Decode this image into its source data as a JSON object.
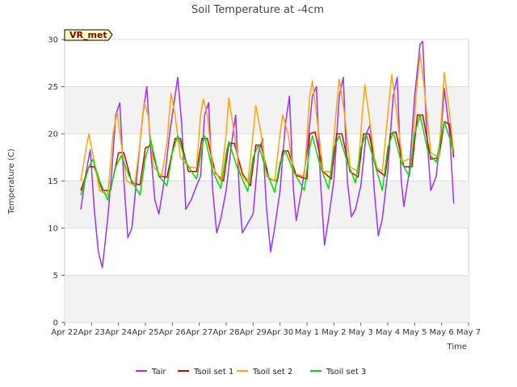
{
  "chart_data": {
    "type": "line",
    "title": "Soil Temperature at -4cm",
    "xlabel": "Time",
    "ylabel": "Temperature (C)",
    "ylim": [
      0,
      30
    ],
    "yticks": [
      "0",
      "5",
      "10",
      "15",
      "20",
      "25",
      "30"
    ],
    "xlim": [
      0,
      15
    ],
    "xtick_labels": [
      "Apr 22",
      "Apr 23",
      "Apr 24",
      "Apr 25",
      "Apr 26",
      "Apr 27",
      "Apr 28",
      "Apr 29",
      "Apr 30",
      "May 1",
      "May 2",
      "May 3",
      "May 4",
      "May 5",
      "May 6",
      "May 7"
    ],
    "grid": "horizontal bands",
    "legend_position": "bottom",
    "site_label": "VR_met",
    "series": [
      {
        "name": "Tair",
        "color": "#9b30ff",
        "points": [
          [
            0.6,
            12
          ],
          [
            0.8,
            16
          ],
          [
            0.95,
            18.3
          ],
          [
            1.1,
            12
          ],
          [
            1.25,
            7.5
          ],
          [
            1.4,
            5.8
          ],
          [
            1.6,
            11
          ],
          [
            1.75,
            16
          ],
          [
            1.9,
            22
          ],
          [
            2.05,
            23.3
          ],
          [
            2.2,
            15
          ],
          [
            2.35,
            9
          ],
          [
            2.5,
            10
          ],
          [
            2.7,
            16
          ],
          [
            2.9,
            22
          ],
          [
            3.05,
            25
          ],
          [
            3.2,
            18
          ],
          [
            3.35,
            13
          ],
          [
            3.5,
            11.5
          ],
          [
            3.7,
            15
          ],
          [
            3.9,
            20
          ],
          [
            4.05,
            23
          ],
          [
            4.2,
            26
          ],
          [
            4.35,
            21
          ],
          [
            4.5,
            12
          ],
          [
            4.7,
            13
          ],
          [
            4.9,
            14.5
          ],
          [
            5.05,
            15.5
          ],
          [
            5.2,
            22
          ],
          [
            5.35,
            23.3
          ],
          [
            5.5,
            14
          ],
          [
            5.65,
            9.5
          ],
          [
            5.8,
            11
          ],
          [
            6.0,
            14
          ],
          [
            6.2,
            19
          ],
          [
            6.35,
            22
          ],
          [
            6.5,
            13
          ],
          [
            6.6,
            9.5
          ],
          [
            6.8,
            10.5
          ],
          [
            7.0,
            11.5
          ],
          [
            7.2,
            18
          ],
          [
            7.35,
            19.5
          ],
          [
            7.5,
            12
          ],
          [
            7.65,
            7.5
          ],
          [
            7.8,
            10
          ],
          [
            8.0,
            14
          ],
          [
            8.2,
            21
          ],
          [
            8.35,
            24
          ],
          [
            8.5,
            14
          ],
          [
            8.6,
            10.8
          ],
          [
            8.8,
            14
          ],
          [
            9.0,
            18
          ],
          [
            9.2,
            24
          ],
          [
            9.35,
            25
          ],
          [
            9.5,
            15
          ],
          [
            9.65,
            8.2
          ],
          [
            9.8,
            11
          ],
          [
            10.0,
            15
          ],
          [
            10.2,
            24
          ],
          [
            10.35,
            26
          ],
          [
            10.5,
            15
          ],
          [
            10.65,
            11.2
          ],
          [
            10.8,
            12
          ],
          [
            11.0,
            14.5
          ],
          [
            11.2,
            20
          ],
          [
            11.35,
            21
          ],
          [
            11.5,
            14
          ],
          [
            11.65,
            9.2
          ],
          [
            11.8,
            11
          ],
          [
            12.0,
            16
          ],
          [
            12.2,
            24
          ],
          [
            12.35,
            26
          ],
          [
            12.5,
            15
          ],
          [
            12.6,
            12.3
          ],
          [
            12.8,
            16
          ],
          [
            13.0,
            24
          ],
          [
            13.2,
            29.5
          ],
          [
            13.3,
            29.8
          ],
          [
            13.45,
            20
          ],
          [
            13.6,
            14
          ],
          [
            13.8,
            15.5
          ],
          [
            14.0,
            21
          ],
          [
            14.1,
            24.8
          ],
          [
            14.3,
            20
          ],
          [
            14.45,
            12.6
          ]
        ]
      },
      {
        "name": "Tsoil set 1",
        "color": "#dd0000",
        "points": [
          [
            0.6,
            14
          ],
          [
            0.9,
            16.5
          ],
          [
            1.1,
            16.5
          ],
          [
            1.4,
            14
          ],
          [
            1.7,
            14
          ],
          [
            2.0,
            18
          ],
          [
            2.2,
            18
          ],
          [
            2.5,
            14.8
          ],
          [
            2.8,
            14.6
          ],
          [
            3.0,
            18.5
          ],
          [
            3.2,
            18.8
          ],
          [
            3.5,
            15.5
          ],
          [
            3.8,
            15.4
          ],
          [
            4.1,
            19.5
          ],
          [
            4.3,
            19.5
          ],
          [
            4.6,
            16
          ],
          [
            4.9,
            16
          ],
          [
            5.1,
            19.5
          ],
          [
            5.3,
            19.5
          ],
          [
            5.6,
            15.8
          ],
          [
            5.9,
            15
          ],
          [
            6.1,
            19
          ],
          [
            6.3,
            19
          ],
          [
            6.6,
            15.8
          ],
          [
            6.9,
            14.5
          ],
          [
            7.1,
            18.8
          ],
          [
            7.3,
            18.8
          ],
          [
            7.6,
            15.2
          ],
          [
            7.9,
            15
          ],
          [
            8.1,
            18.2
          ],
          [
            8.3,
            18.2
          ],
          [
            8.6,
            15.6
          ],
          [
            9.0,
            15.2
          ],
          [
            9.1,
            20
          ],
          [
            9.3,
            20.2
          ],
          [
            9.6,
            16
          ],
          [
            9.9,
            15.2
          ],
          [
            10.1,
            20
          ],
          [
            10.3,
            20
          ],
          [
            10.6,
            16
          ],
          [
            10.9,
            15.4
          ],
          [
            11.1,
            20
          ],
          [
            11.3,
            20
          ],
          [
            11.6,
            16.2
          ],
          [
            11.9,
            15.5
          ],
          [
            12.1,
            20
          ],
          [
            12.3,
            20.2
          ],
          [
            12.6,
            16.5
          ],
          [
            12.9,
            16.5
          ],
          [
            13.1,
            22
          ],
          [
            13.3,
            22
          ],
          [
            13.6,
            17.3
          ],
          [
            13.9,
            17.5
          ],
          [
            14.1,
            21.3
          ],
          [
            14.3,
            21
          ],
          [
            14.45,
            17.5
          ]
        ]
      },
      {
        "name": "Tsoil set 2",
        "color": "#ffa500",
        "points": [
          [
            0.6,
            15
          ],
          [
            0.8,
            18.5
          ],
          [
            0.9,
            20
          ],
          [
            1.1,
            17
          ],
          [
            1.3,
            14
          ],
          [
            1.6,
            13.5
          ],
          [
            1.8,
            20
          ],
          [
            1.95,
            22.3
          ],
          [
            2.1,
            19
          ],
          [
            2.3,
            15
          ],
          [
            2.6,
            14.5
          ],
          [
            2.8,
            19
          ],
          [
            2.95,
            23.3
          ],
          [
            3.1,
            22
          ],
          [
            3.3,
            16.5
          ],
          [
            3.6,
            15.5
          ],
          [
            3.8,
            19
          ],
          [
            3.95,
            24.3
          ],
          [
            4.1,
            22
          ],
          [
            4.3,
            17.5
          ],
          [
            4.6,
            16.5
          ],
          [
            4.9,
            16.4
          ],
          [
            5.05,
            22
          ],
          [
            5.15,
            23.7
          ],
          [
            5.3,
            22
          ],
          [
            5.5,
            16.5
          ],
          [
            5.8,
            15
          ],
          [
            6.0,
            20
          ],
          [
            6.1,
            23.8
          ],
          [
            6.3,
            20
          ],
          [
            6.5,
            16
          ],
          [
            6.8,
            14.8
          ],
          [
            7.0,
            20
          ],
          [
            7.1,
            23
          ],
          [
            7.3,
            20
          ],
          [
            7.5,
            15.5
          ],
          [
            7.8,
            15
          ],
          [
            8.0,
            20
          ],
          [
            8.1,
            22
          ],
          [
            8.3,
            20
          ],
          [
            8.5,
            15.8
          ],
          [
            8.9,
            15.5
          ],
          [
            9.1,
            24
          ],
          [
            9.2,
            25.6
          ],
          [
            9.4,
            21
          ],
          [
            9.6,
            16
          ],
          [
            9.9,
            16
          ],
          [
            10.1,
            23
          ],
          [
            10.2,
            25.8
          ],
          [
            10.4,
            22
          ],
          [
            10.6,
            16.5
          ],
          [
            10.9,
            16
          ],
          [
            11.05,
            22
          ],
          [
            11.15,
            25.2
          ],
          [
            11.3,
            22
          ],
          [
            11.55,
            16.5
          ],
          [
            11.8,
            16
          ],
          [
            12.0,
            22
          ],
          [
            12.15,
            26.3
          ],
          [
            12.3,
            23
          ],
          [
            12.55,
            17
          ],
          [
            12.9,
            17.5
          ],
          [
            13.05,
            24
          ],
          [
            13.2,
            28.5
          ],
          [
            13.35,
            25
          ],
          [
            13.6,
            18
          ],
          [
            13.9,
            17.5
          ],
          [
            14.0,
            22
          ],
          [
            14.1,
            26.5
          ],
          [
            14.3,
            22
          ],
          [
            14.45,
            18
          ]
        ]
      },
      {
        "name": "Tsoil set 3",
        "color": "#00e000",
        "points": [
          [
            0.6,
            13.5
          ],
          [
            0.9,
            16.5
          ],
          [
            1.05,
            17.3
          ],
          [
            1.3,
            15
          ],
          [
            1.6,
            13
          ],
          [
            1.9,
            16.5
          ],
          [
            2.1,
            17.7
          ],
          [
            2.4,
            15.5
          ],
          [
            2.8,
            13.5
          ],
          [
            3.0,
            17.5
          ],
          [
            3.2,
            19.3
          ],
          [
            3.5,
            15.5
          ],
          [
            3.8,
            14.5
          ],
          [
            4.0,
            18
          ],
          [
            4.2,
            19.8
          ],
          [
            4.5,
            17
          ],
          [
            4.9,
            15.2
          ],
          [
            5.1,
            18.5
          ],
          [
            5.2,
            19.8
          ],
          [
            5.5,
            16
          ],
          [
            5.8,
            14.2
          ],
          [
            6.0,
            18
          ],
          [
            6.1,
            19.2
          ],
          [
            6.4,
            16.5
          ],
          [
            6.8,
            13.9
          ],
          [
            7.0,
            17.5
          ],
          [
            7.2,
            18.8
          ],
          [
            7.5,
            16
          ],
          [
            7.8,
            13.8
          ],
          [
            8.0,
            17
          ],
          [
            8.2,
            18.2
          ],
          [
            8.5,
            16
          ],
          [
            8.9,
            14
          ],
          [
            9.1,
            18.5
          ],
          [
            9.2,
            19.8
          ],
          [
            9.5,
            16.5
          ],
          [
            9.8,
            14.2
          ],
          [
            10.0,
            18.5
          ],
          [
            10.2,
            19.8
          ],
          [
            10.5,
            17
          ],
          [
            10.8,
            14.8
          ],
          [
            11.0,
            18.5
          ],
          [
            11.2,
            20
          ],
          [
            11.5,
            17
          ],
          [
            11.8,
            14
          ],
          [
            12.0,
            18.5
          ],
          [
            12.2,
            20.2
          ],
          [
            12.5,
            17
          ],
          [
            12.8,
            15.5
          ],
          [
            13.0,
            20
          ],
          [
            13.2,
            22
          ],
          [
            13.5,
            18
          ],
          [
            13.8,
            17
          ],
          [
            14.0,
            20
          ],
          [
            14.1,
            21.3
          ],
          [
            14.3,
            19.5
          ],
          [
            14.45,
            18
          ]
        ]
      }
    ]
  }
}
